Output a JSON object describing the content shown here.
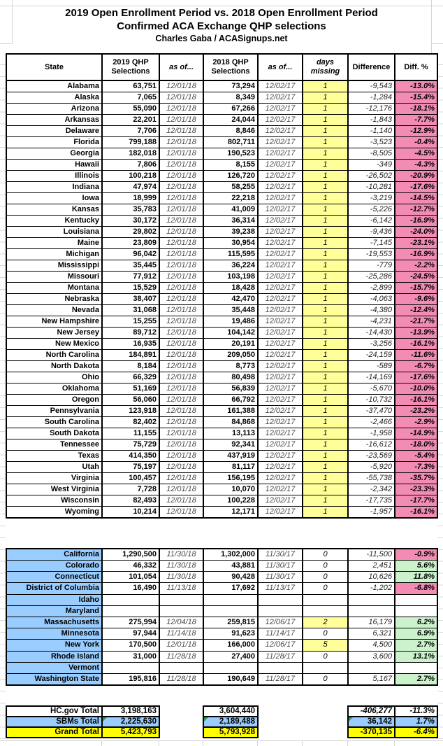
{
  "title": {
    "line1": "2019 Open Enrollment Period vs. 2018 Open Enrollment Period",
    "line2": "Confirmed ACA Exchange QHP selections",
    "byline": "Charles Gaba / ACASignups.net"
  },
  "columns": [
    "State",
    "2019 QHP Selections",
    "as of...",
    "2018 QHP Selections",
    "as of...",
    "days missing",
    "Difference",
    "Diff. %"
  ],
  "colors": {
    "header_days_yellow": "#FFFF00",
    "days_cell_yellow": "#FFFF99",
    "negative_pink": "#F38CB4",
    "positive_green": "#CCF2CC",
    "sbm_blue": "#99CCFF",
    "grand_total_yellow": "#FFFF00",
    "note_triangle_green": "#2E9B4F"
  },
  "hcgov_rows": [
    {
      "state": "Alabama",
      "v2019": "63,751",
      "a2019": "12/01/18",
      "v2018": "73,294",
      "a2018": "12/02/17",
      "days": "1",
      "diff": "-9,543",
      "pct": "-13.0%",
      "pctc": "neg",
      "dhl": true
    },
    {
      "state": "Alaska",
      "v2019": "7,065",
      "a2019": "12/01/18",
      "v2018": "8,349",
      "a2018": "12/02/17",
      "days": "1",
      "diff": "-1,284",
      "pct": "-15.4%",
      "pctc": "neg",
      "dhl": true
    },
    {
      "state": "Arizona",
      "v2019": "55,090",
      "a2019": "12/01/18",
      "v2018": "67,266",
      "a2018": "12/02/17",
      "days": "1",
      "diff": "-12,176",
      "pct": "-18.1%",
      "pctc": "neg",
      "dhl": true
    },
    {
      "state": "Arkansas",
      "v2019": "22,201",
      "a2019": "12/01/18",
      "v2018": "24,044",
      "a2018": "12/02/17",
      "days": "1",
      "diff": "-1,843",
      "pct": "-7.7%",
      "pctc": "neg",
      "dhl": true
    },
    {
      "state": "Delaware",
      "v2019": "7,706",
      "a2019": "12/01/18",
      "v2018": "8,846",
      "a2018": "12/02/17",
      "days": "1",
      "diff": "-1,140",
      "pct": "-12.9%",
      "pctc": "neg",
      "dhl": true
    },
    {
      "state": "Florida",
      "v2019": "799,188",
      "a2019": "12/01/18",
      "v2018": "802,711",
      "a2018": "12/02/17",
      "days": "1",
      "diff": "-3,523",
      "pct": "-0.4%",
      "pctc": "neg",
      "dhl": true
    },
    {
      "state": "Georgia",
      "v2019": "182,018",
      "a2019": "12/01/18",
      "v2018": "190,523",
      "a2018": "12/02/17",
      "days": "1",
      "diff": "-8,505",
      "pct": "-4.5%",
      "pctc": "neg",
      "dhl": true
    },
    {
      "state": "Hawaii",
      "v2019": "7,806",
      "a2019": "12/01/18",
      "v2018": "8,155",
      "a2018": "12/02/17",
      "days": "1",
      "diff": "-349",
      "pct": "-4.3%",
      "pctc": "neg",
      "dhl": true
    },
    {
      "state": "Illinois",
      "v2019": "100,218",
      "a2019": "12/01/18",
      "v2018": "126,720",
      "a2018": "12/02/17",
      "days": "1",
      "diff": "-26,502",
      "pct": "-20.9%",
      "pctc": "neg",
      "dhl": true
    },
    {
      "state": "Indiana",
      "v2019": "47,974",
      "a2019": "12/01/18",
      "v2018": "58,255",
      "a2018": "12/02/17",
      "days": "1",
      "diff": "-10,281",
      "pct": "-17.6%",
      "pctc": "neg",
      "dhl": true
    },
    {
      "state": "Iowa",
      "v2019": "18,999",
      "a2019": "12/01/18",
      "v2018": "22,218",
      "a2018": "12/02/17",
      "days": "1",
      "diff": "-3,219",
      "pct": "-14.5%",
      "pctc": "neg",
      "dhl": true
    },
    {
      "state": "Kansas",
      "v2019": "35,783",
      "a2019": "12/01/18",
      "v2018": "41,009",
      "a2018": "12/02/17",
      "days": "1",
      "diff": "-5,226",
      "pct": "-12.7%",
      "pctc": "neg",
      "dhl": true
    },
    {
      "state": "Kentucky",
      "v2019": "30,172",
      "a2019": "12/01/18",
      "v2018": "36,314",
      "a2018": "12/02/17",
      "days": "1",
      "diff": "-6,142",
      "pct": "-16.9%",
      "pctc": "neg",
      "dhl": true
    },
    {
      "state": "Louisiana",
      "v2019": "29,802",
      "a2019": "12/01/18",
      "v2018": "39,238",
      "a2018": "12/02/17",
      "days": "1",
      "diff": "-9,436",
      "pct": "-24.0%",
      "pctc": "neg",
      "dhl": true
    },
    {
      "state": "Maine",
      "v2019": "23,809",
      "a2019": "12/01/18",
      "v2018": "30,954",
      "a2018": "12/02/17",
      "days": "1",
      "diff": "-7,145",
      "pct": "-23.1%",
      "pctc": "neg",
      "dhl": true
    },
    {
      "state": "Michigan",
      "v2019": "96,042",
      "a2019": "12/01/18",
      "v2018": "115,595",
      "a2018": "12/02/17",
      "days": "1",
      "diff": "-19,553",
      "pct": "-16.9%",
      "pctc": "neg",
      "dhl": true
    },
    {
      "state": "Mississippi",
      "v2019": "35,445",
      "a2019": "12/01/18",
      "v2018": "36,224",
      "a2018": "12/02/17",
      "days": "1",
      "diff": "-779",
      "pct": "-2.2%",
      "pctc": "neg",
      "dhl": true
    },
    {
      "state": "Missouri",
      "v2019": "77,912",
      "a2019": "12/01/18",
      "v2018": "103,198",
      "a2018": "12/02/17",
      "days": "1",
      "diff": "-25,286",
      "pct": "-24.5%",
      "pctc": "neg",
      "dhl": true
    },
    {
      "state": "Montana",
      "v2019": "15,529",
      "a2019": "12/01/18",
      "v2018": "18,428",
      "a2018": "12/02/17",
      "days": "1",
      "diff": "-2,899",
      "pct": "-15.7%",
      "pctc": "neg",
      "dhl": true
    },
    {
      "state": "Nebraska",
      "v2019": "38,407",
      "a2019": "12/01/18",
      "v2018": "42,470",
      "a2018": "12/02/17",
      "days": "1",
      "diff": "-4,063",
      "pct": "-9.6%",
      "pctc": "neg",
      "dhl": true
    },
    {
      "state": "Nevada",
      "v2019": "31,068",
      "a2019": "12/01/18",
      "v2018": "35,448",
      "a2018": "12/02/17",
      "days": "1",
      "diff": "-4,380",
      "pct": "-12.4%",
      "pctc": "neg",
      "dhl": true
    },
    {
      "state": "New Hampshire",
      "v2019": "15,255",
      "a2019": "12/01/18",
      "v2018": "19,486",
      "a2018": "12/02/17",
      "days": "1",
      "diff": "-4,231",
      "pct": "-21.7%",
      "pctc": "neg",
      "dhl": true
    },
    {
      "state": "New Jersey",
      "v2019": "89,712",
      "a2019": "12/01/18",
      "v2018": "104,142",
      "a2018": "12/02/17",
      "days": "1",
      "diff": "-14,430",
      "pct": "-13.9%",
      "pctc": "neg",
      "dhl": true
    },
    {
      "state": "New Mexico",
      "v2019": "16,935",
      "a2019": "12/01/18",
      "v2018": "20,191",
      "a2018": "12/02/17",
      "days": "1",
      "diff": "-3,256",
      "pct": "-16.1%",
      "pctc": "neg",
      "dhl": true
    },
    {
      "state": "North Carolina",
      "v2019": "184,891",
      "a2019": "12/01/18",
      "v2018": "209,050",
      "a2018": "12/02/17",
      "days": "1",
      "diff": "-24,159",
      "pct": "-11.6%",
      "pctc": "neg",
      "dhl": true
    },
    {
      "state": "North Dakota",
      "v2019": "8,184",
      "a2019": "12/01/18",
      "v2018": "8,773",
      "a2018": "12/02/17",
      "days": "1",
      "diff": "-589",
      "pct": "-6.7%",
      "pctc": "neg",
      "dhl": true
    },
    {
      "state": "Ohio",
      "v2019": "66,329",
      "a2019": "12/01/18",
      "v2018": "80,498",
      "a2018": "12/02/17",
      "days": "1",
      "diff": "-14,169",
      "pct": "-17.6%",
      "pctc": "neg",
      "dhl": true
    },
    {
      "state": "Oklahoma",
      "v2019": "51,169",
      "a2019": "12/01/18",
      "v2018": "56,839",
      "a2018": "12/02/17",
      "days": "1",
      "diff": "-5,670",
      "pct": "-10.0%",
      "pctc": "neg",
      "dhl": true
    },
    {
      "state": "Oregon",
      "v2019": "56,060",
      "a2019": "12/01/18",
      "v2018": "66,792",
      "a2018": "12/02/17",
      "days": "1",
      "diff": "-10,732",
      "pct": "-16.1%",
      "pctc": "neg",
      "dhl": true
    },
    {
      "state": "Pennsylvania",
      "v2019": "123,918",
      "a2019": "12/01/18",
      "v2018": "161,388",
      "a2018": "12/02/17",
      "days": "1",
      "diff": "-37,470",
      "pct": "-23.2%",
      "pctc": "neg",
      "dhl": true
    },
    {
      "state": "South Carolina",
      "v2019": "82,402",
      "a2019": "12/01/18",
      "v2018": "84,868",
      "a2018": "12/02/17",
      "days": "1",
      "diff": "-2,466",
      "pct": "-2.9%",
      "pctc": "neg",
      "dhl": true
    },
    {
      "state": "South Dakota",
      "v2019": "11,155",
      "a2019": "12/01/18",
      "v2018": "13,113",
      "a2018": "12/02/17",
      "days": "1",
      "diff": "-1,958",
      "pct": "-14.9%",
      "pctc": "neg",
      "dhl": true
    },
    {
      "state": "Tennessee",
      "v2019": "75,729",
      "a2019": "12/01/18",
      "v2018": "92,341",
      "a2018": "12/02/17",
      "days": "1",
      "diff": "-16,612",
      "pct": "-18.0%",
      "pctc": "neg",
      "dhl": true
    },
    {
      "state": "Texas",
      "v2019": "414,350",
      "a2019": "12/01/18",
      "v2018": "437,919",
      "a2018": "12/02/17",
      "days": "1",
      "diff": "-23,569",
      "pct": "-5.4%",
      "pctc": "neg",
      "dhl": true
    },
    {
      "state": "Utah",
      "v2019": "75,197",
      "a2019": "12/01/18",
      "v2018": "81,117",
      "a2018": "12/02/17",
      "days": "1",
      "diff": "-5,920",
      "pct": "-7.3%",
      "pctc": "neg",
      "dhl": true
    },
    {
      "state": "Virginia",
      "v2019": "100,457",
      "a2019": "12/01/18",
      "v2018": "156,195",
      "a2018": "12/02/17",
      "days": "1",
      "diff": "-55,738",
      "pct": "-35.7%",
      "pctc": "neg",
      "dhl": true
    },
    {
      "state": "West Virginia",
      "v2019": "7,728",
      "a2019": "12/01/18",
      "v2018": "10,070",
      "a2018": "12/02/17",
      "days": "1",
      "diff": "-2,342",
      "pct": "-23.3%",
      "pctc": "neg",
      "dhl": true
    },
    {
      "state": "Wisconsin",
      "v2019": "82,493",
      "a2019": "12/01/18",
      "v2018": "100,228",
      "a2018": "12/02/17",
      "days": "1",
      "diff": "-17,735",
      "pct": "-17.7%",
      "pctc": "neg",
      "dhl": true
    },
    {
      "state": "Wyoming",
      "v2019": "10,214",
      "a2019": "12/01/18",
      "v2018": "12,171",
      "a2018": "12/02/17",
      "days": "1",
      "diff": "-1,957",
      "pct": "-16.1%",
      "pctc": "neg",
      "dhl": true
    }
  ],
  "sbm_rows": [
    {
      "state": "California",
      "v2019": "1,290,500",
      "a2019": "11/30/18",
      "v2018": "1,302,000",
      "a2018": "11/30/17",
      "days": "0",
      "diff": "-11,500",
      "pct": "-0.9%",
      "pctc": "neg",
      "dhl": false
    },
    {
      "state": "Colorado",
      "v2019": "46,332",
      "a2019": "11/30/18",
      "v2018": "43,881",
      "a2018": "11/30/17",
      "days": "0",
      "diff": "2,451",
      "pct": "5.6%",
      "pctc": "pos",
      "dhl": false
    },
    {
      "state": "Connecticut",
      "v2019": "101,054",
      "a2019": "11/30/18",
      "v2018": "90,428",
      "a2018": "11/30/17",
      "days": "0",
      "diff": "10,626",
      "pct": "11.8%",
      "pctc": "pos",
      "dhl": false
    },
    {
      "state": "District of Columbia",
      "v2019": "16,490",
      "a2019": "11/13/18",
      "v2018": "17,692",
      "a2018": "11/13/17",
      "days": "0",
      "diff": "-1,202",
      "pct": "-6.8%",
      "pctc": "neg",
      "dhl": false
    },
    {
      "state": "Idaho",
      "v2019": "",
      "a2019": "",
      "v2018": "",
      "a2018": "",
      "days": "",
      "diff": "",
      "pct": "",
      "pctc": "",
      "dhl": false
    },
    {
      "state": "Maryland",
      "v2019": "",
      "a2019": "",
      "v2018": "",
      "a2018": "",
      "days": "",
      "diff": "",
      "pct": "",
      "pctc": "",
      "dhl": false
    },
    {
      "state": "Massachusetts",
      "v2019": "275,994",
      "a2019": "12/04/18",
      "v2018": "259,815",
      "a2018": "12/06/17",
      "days": "2",
      "diff": "16,179",
      "pct": "6.2%",
      "pctc": "pos",
      "dhl": true
    },
    {
      "state": "Minnesota",
      "v2019": "97,944",
      "a2019": "11/14/18",
      "v2018": "91,623",
      "a2018": "11/14/17",
      "days": "0",
      "diff": "6,321",
      "pct": "6.9%",
      "pctc": "pos",
      "dhl": false
    },
    {
      "state": "New York",
      "v2019": "170,500",
      "a2019": "12/01/18",
      "v2018": "166,000",
      "a2018": "12/06/17",
      "days": "5",
      "diff": "4,500",
      "pct": "2.7%",
      "pctc": "pos",
      "dhl": true
    },
    {
      "state": "Rhode Island",
      "v2019": "31,000",
      "a2019": "11/28/18",
      "v2018": "27,400",
      "a2018": "11/28/17",
      "days": "0",
      "diff": "3,600",
      "pct": "13.1%",
      "pctc": "pos",
      "dhl": false
    },
    {
      "state": "Vermont",
      "v2019": "",
      "a2019": "",
      "v2018": "",
      "a2018": "",
      "days": "",
      "diff": "",
      "pct": "",
      "pctc": "",
      "dhl": false
    },
    {
      "state": "Washington State",
      "v2019": "195,816",
      "a2019": "11/28/18",
      "v2018": "190,649",
      "a2018": "11/28/17",
      "days": "0",
      "diff": "5,167",
      "pct": "2.7%",
      "pctc": "pos",
      "dhl": false
    }
  ],
  "totals": [
    {
      "label": "HC.gov Total",
      "v2019": "3,198,163",
      "v2018": "3,604,440",
      "diff": "-406,277",
      "pct": "-11.3%",
      "style": "white",
      "diff_italic": true,
      "notes": {}
    },
    {
      "label": "SBMs Total",
      "v2019": "2,225,630",
      "v2018": "2,189,488",
      "diff": "36,142",
      "pct": "1.7%",
      "style": "blue",
      "diff_italic": false,
      "notes": {
        "v2019": true,
        "v2018": true,
        "diff": true
      }
    },
    {
      "label": "Grand Total",
      "v2019": "5,423,793",
      "v2018": "5,793,928",
      "diff": "-370,135",
      "pct": "-6.4%",
      "style": "yellow",
      "diff_italic": false,
      "notes": {}
    }
  ]
}
